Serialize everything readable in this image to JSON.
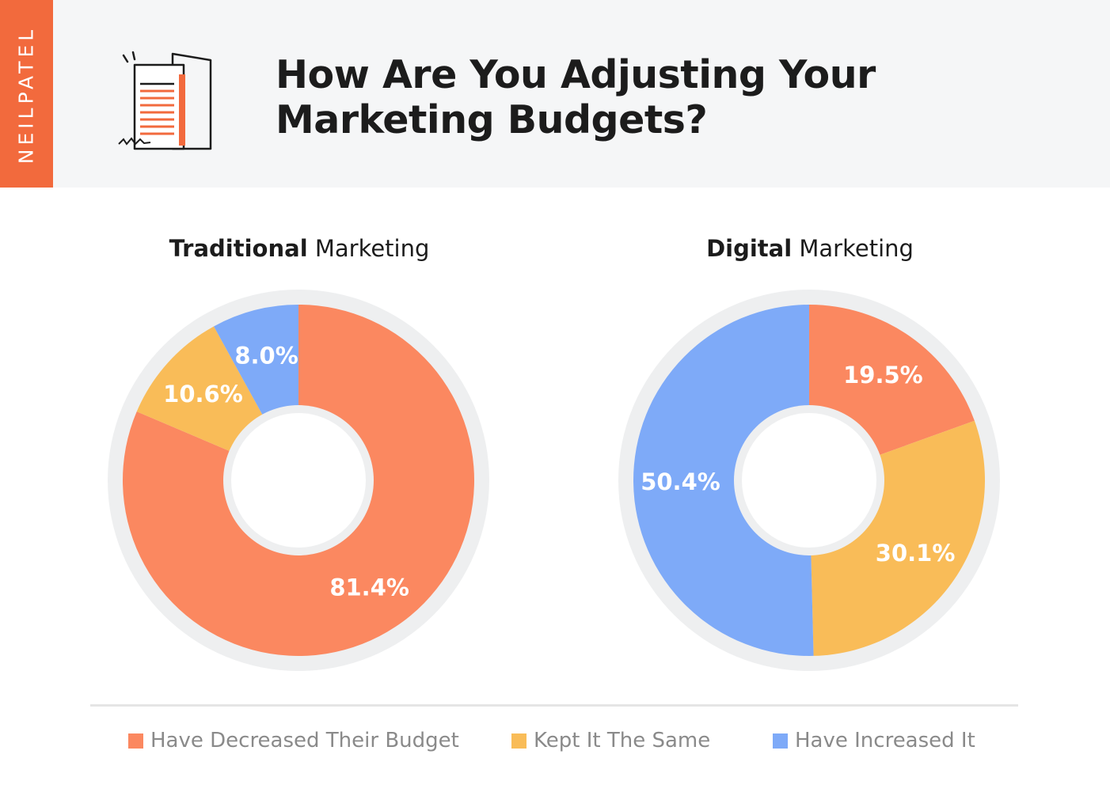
{
  "brand": "NEILPATEL",
  "title_line1": "How Are You Adjusting Your",
  "title_line2": "Marketing Budgets?",
  "colors": {
    "decreased": "#fb8860",
    "same": "#f9bc58",
    "increased": "#7eaaf8",
    "ring": "#eeeff0",
    "brand": "#f26a3d"
  },
  "legend": [
    {
      "label": "Have Decreased Their Budget",
      "color": "#fb8860"
    },
    {
      "label": "Kept It The Same",
      "color": "#f9bc58"
    },
    {
      "label": "Have Increased It",
      "color": "#7eaaf8"
    }
  ],
  "chart_data": [
    {
      "type": "pie",
      "title_bold": "Traditional",
      "title_rest": "Marketing",
      "series": [
        {
          "name": "Have Decreased Their Budget",
          "value": 81.4,
          "label": "81.4%",
          "color": "#fb8860"
        },
        {
          "name": "Kept It The Same",
          "value": 10.6,
          "label": "10.6%",
          "color": "#f9bc58"
        },
        {
          "name": "Have Increased It",
          "value": 8.0,
          "label": "8.0%",
          "color": "#7eaaf8"
        }
      ]
    },
    {
      "type": "pie",
      "title_bold": "Digital",
      "title_rest": "Marketing",
      "series": [
        {
          "name": "Have Decreased Their Budget",
          "value": 19.5,
          "label": "19.5%",
          "color": "#fb8860"
        },
        {
          "name": "Kept It The Same",
          "value": 30.1,
          "label": "30.1%",
          "color": "#f9bc58"
        },
        {
          "name": "Have Increased It",
          "value": 50.4,
          "label": "50.4%",
          "color": "#7eaaf8"
        }
      ]
    }
  ]
}
